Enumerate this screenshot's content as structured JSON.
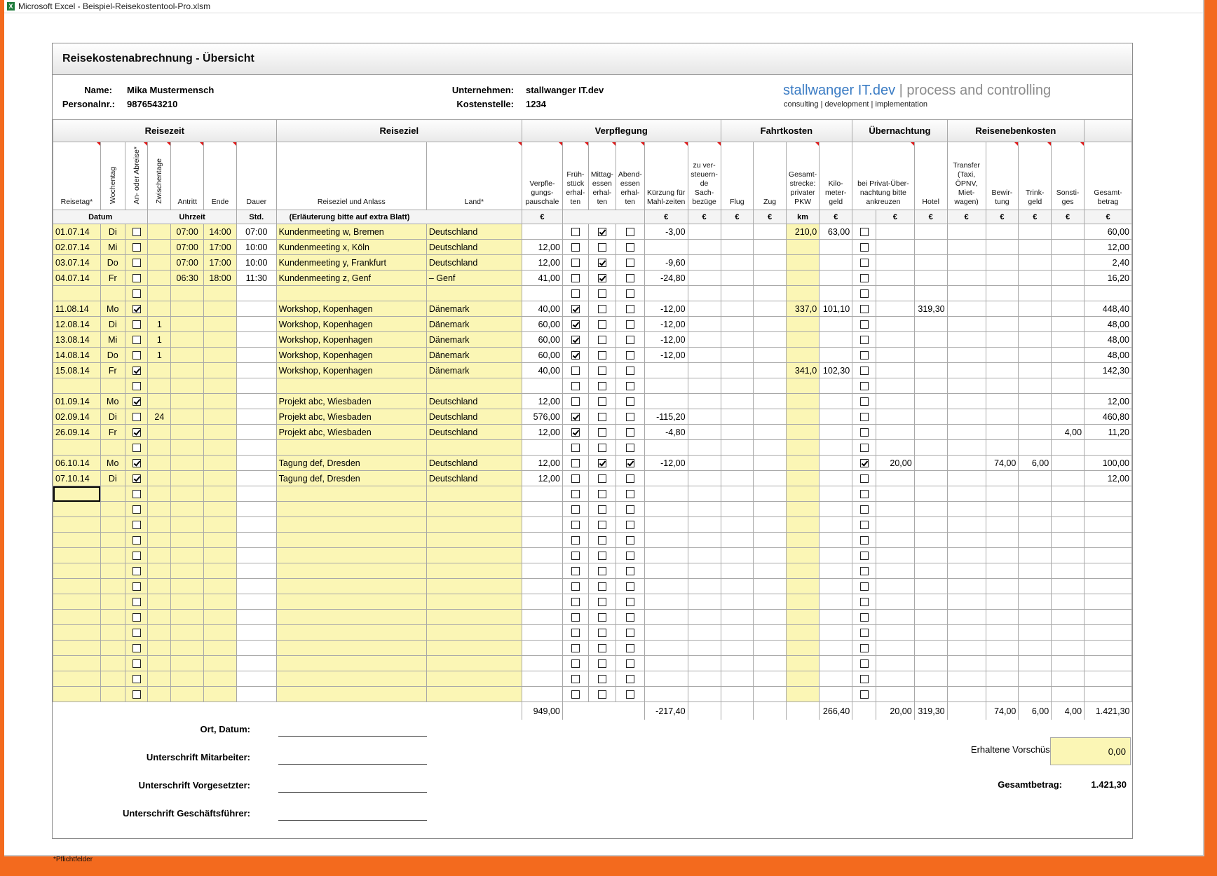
{
  "window_title": "Microsoft Excel - Beispiel-Reisekostentool-Pro.xlsm",
  "app_icon": "excel-icon",
  "sheet_title": "Reisekostenabrechnung - Übersicht",
  "employee": {
    "name_label": "Name:",
    "name": "Mika Mustermensch",
    "id_label": "Personalnr.:",
    "id": "9876543210"
  },
  "company": {
    "company_label": "Unternehmen:",
    "company": "stallwanger IT.dev",
    "cost_center_label": "Kostenstelle:",
    "cost_center": "1234"
  },
  "logo": {
    "brand": "stallwanger IT.dev",
    "separator": "|",
    "claim": "process and controlling",
    "tagline": "consulting | development | implementation"
  },
  "groups": [
    "Reisezeit",
    "Reiseziel",
    "Verpflegung",
    "Fahrtkosten",
    "Übernachtung",
    "Reisenebenkosten"
  ],
  "columns": {
    "reisetag": "Reisetag*",
    "wochentag": "Wochentag",
    "anab": "An- oder Abreise*",
    "zwischen": "Zwischentage",
    "antritt": "Antritt",
    "ende": "Ende",
    "dauer": "Dauer",
    "reiseziel": "Reiseziel und Anlass",
    "land": "Land*",
    "pauschale": "Verpfle-gungs-pauschale",
    "frueh": "Früh-stück erhal-ten",
    "mittag": "Mittag-essen erhal-ten",
    "abend": "Abend-essen erhal-ten",
    "kuerzung": "Kürzung für Mahl-zeiten",
    "sachbezuege": "zu ver-steuern-de Sach-bezüge",
    "flug": "Flug",
    "zug": "Zug",
    "strecke": "Gesamt-strecke: privater PKW",
    "kilometer": "Kilo-meter-geld",
    "privat": "bei Privat-Über-nachtung bitte ankreuzen",
    "hotel": "Hotel",
    "transfer": "Transfer (Taxi, ÖPNV, Miet-wagen)",
    "bewirtung": "Bewir-tung",
    "trinkgeld": "Trink-geld",
    "sonstiges": "Sonsti-ges",
    "gesamt": "Gesamt-betrag"
  },
  "units": {
    "datum": "Datum",
    "uhrzeit": "Uhrzeit",
    "std": "Std.",
    "erlaeuterung": "(Erläuterung bitte auf extra Blatt)",
    "euro": "€",
    "km": "km"
  },
  "rows": [
    {
      "date": "01.07.14",
      "wd": "Di",
      "ab": false,
      "zt": "",
      "start": "07:00",
      "end": "14:00",
      "dur": "07:00",
      "dest": "Kundenmeeting w, Bremen",
      "land": "Deutschland",
      "pausch": "",
      "fr": false,
      "mi": true,
      "abd": false,
      "kuerz": "-3,00",
      "km": "210,0",
      "kmg": "63,00",
      "pr": false,
      "hotel": "",
      "bew": "",
      "trk": "",
      "sonst": "",
      "total": "60,00"
    },
    {
      "date": "02.07.14",
      "wd": "Mi",
      "ab": false,
      "zt": "",
      "start": "07:00",
      "end": "17:00",
      "dur": "10:00",
      "dest": "Kundenmeeting x, Köln",
      "land": "Deutschland",
      "pausch": "12,00",
      "fr": false,
      "mi": false,
      "abd": false,
      "kuerz": "",
      "km": "",
      "kmg": "",
      "pr": false,
      "hotel": "",
      "bew": "",
      "trk": "",
      "sonst": "",
      "total": "12,00"
    },
    {
      "date": "03.07.14",
      "wd": "Do",
      "ab": false,
      "zt": "",
      "start": "07:00",
      "end": "17:00",
      "dur": "10:00",
      "dest": "Kundenmeeting y, Frankfurt",
      "land": "Deutschland",
      "pausch": "12,00",
      "fr": false,
      "mi": true,
      "abd": false,
      "kuerz": "-9,60",
      "km": "",
      "kmg": "",
      "pr": false,
      "hotel": "",
      "bew": "",
      "trk": "",
      "sonst": "",
      "total": "2,40"
    },
    {
      "date": "04.07.14",
      "wd": "Fr",
      "ab": false,
      "zt": "",
      "start": "06:30",
      "end": "18:00",
      "dur": "11:30",
      "dest": "Kundenmeeting z, Genf",
      "land": "– Genf",
      "pausch": "41,00",
      "fr": false,
      "mi": true,
      "abd": false,
      "kuerz": "-24,80",
      "km": "",
      "kmg": "",
      "pr": false,
      "hotel": "",
      "bew": "",
      "trk": "",
      "sonst": "",
      "total": "16,20"
    },
    {
      "date": "",
      "wd": "",
      "ab": false,
      "zt": "",
      "start": "",
      "end": "",
      "dur": "",
      "dest": "",
      "land": "",
      "pausch": "",
      "fr": false,
      "mi": false,
      "abd": false,
      "kuerz": "",
      "km": "",
      "kmg": "",
      "pr": false,
      "hotel": "",
      "bew": "",
      "trk": "",
      "sonst": "",
      "total": ""
    },
    {
      "date": "11.08.14",
      "wd": "Mo",
      "ab": true,
      "zt": "",
      "start": "",
      "end": "",
      "dur": "",
      "dest": "Workshop, Kopenhagen",
      "land": "Dänemark",
      "pausch": "40,00",
      "fr": true,
      "mi": false,
      "abd": false,
      "kuerz": "-12,00",
      "km": "337,0",
      "kmg": "101,10",
      "pr": false,
      "hotel": "319,30",
      "bew": "",
      "trk": "",
      "sonst": "",
      "total": "448,40"
    },
    {
      "date": "12.08.14",
      "wd": "Di",
      "ab": false,
      "zt": "1",
      "start": "",
      "end": "",
      "dur": "",
      "dest": "Workshop, Kopenhagen",
      "land": "Dänemark",
      "pausch": "60,00",
      "fr": true,
      "mi": false,
      "abd": false,
      "kuerz": "-12,00",
      "km": "",
      "kmg": "",
      "pr": false,
      "hotel": "",
      "bew": "",
      "trk": "",
      "sonst": "",
      "total": "48,00"
    },
    {
      "date": "13.08.14",
      "wd": "Mi",
      "ab": false,
      "zt": "1",
      "start": "",
      "end": "",
      "dur": "",
      "dest": "Workshop, Kopenhagen",
      "land": "Dänemark",
      "pausch": "60,00",
      "fr": true,
      "mi": false,
      "abd": false,
      "kuerz": "-12,00",
      "km": "",
      "kmg": "",
      "pr": false,
      "hotel": "",
      "bew": "",
      "trk": "",
      "sonst": "",
      "total": "48,00"
    },
    {
      "date": "14.08.14",
      "wd": "Do",
      "ab": false,
      "zt": "1",
      "start": "",
      "end": "",
      "dur": "",
      "dest": "Workshop, Kopenhagen",
      "land": "Dänemark",
      "pausch": "60,00",
      "fr": true,
      "mi": false,
      "abd": false,
      "kuerz": "-12,00",
      "km": "",
      "kmg": "",
      "pr": false,
      "hotel": "",
      "bew": "",
      "trk": "",
      "sonst": "",
      "total": "48,00"
    },
    {
      "date": "15.08.14",
      "wd": "Fr",
      "ab": true,
      "zt": "",
      "start": "",
      "end": "",
      "dur": "",
      "dest": "Workshop, Kopenhagen",
      "land": "Dänemark",
      "pausch": "40,00",
      "fr": false,
      "mi": false,
      "abd": false,
      "kuerz": "",
      "km": "341,0",
      "kmg": "102,30",
      "pr": false,
      "hotel": "",
      "bew": "",
      "trk": "",
      "sonst": "",
      "total": "142,30"
    },
    {
      "date": "",
      "wd": "",
      "ab": false,
      "zt": "",
      "start": "",
      "end": "",
      "dur": "",
      "dest": "",
      "land": "",
      "pausch": "",
      "fr": false,
      "mi": false,
      "abd": false,
      "kuerz": "",
      "km": "",
      "kmg": "",
      "pr": false,
      "hotel": "",
      "bew": "",
      "trk": "",
      "sonst": "",
      "total": ""
    },
    {
      "date": "01.09.14",
      "wd": "Mo",
      "ab": true,
      "zt": "",
      "start": "",
      "end": "",
      "dur": "",
      "dest": "Projekt abc, Wiesbaden",
      "land": "Deutschland",
      "pausch": "12,00",
      "fr": false,
      "mi": false,
      "abd": false,
      "kuerz": "",
      "km": "",
      "kmg": "",
      "pr": false,
      "hotel": "",
      "bew": "",
      "trk": "",
      "sonst": "",
      "total": "12,00"
    },
    {
      "date": "02.09.14",
      "wd": "Di",
      "ab": false,
      "zt": "24",
      "start": "",
      "end": "",
      "dur": "",
      "dest": "Projekt abc, Wiesbaden",
      "land": "Deutschland",
      "pausch": "576,00",
      "fr": true,
      "mi": false,
      "abd": false,
      "kuerz": "-115,20",
      "km": "",
      "kmg": "",
      "pr": false,
      "hotel": "",
      "bew": "",
      "trk": "",
      "sonst": "",
      "total": "460,80"
    },
    {
      "date": "26.09.14",
      "wd": "Fr",
      "ab": true,
      "zt": "",
      "start": "",
      "end": "",
      "dur": "",
      "dest": "Projekt abc, Wiesbaden",
      "land": "Deutschland",
      "pausch": "12,00",
      "fr": true,
      "mi": false,
      "abd": false,
      "kuerz": "-4,80",
      "km": "",
      "kmg": "",
      "pr": false,
      "hotel": "",
      "bew": "",
      "trk": "",
      "sonst": "4,00",
      "total": "11,20"
    },
    {
      "date": "",
      "wd": "",
      "ab": false,
      "zt": "",
      "start": "",
      "end": "",
      "dur": "",
      "dest": "",
      "land": "",
      "pausch": "",
      "fr": false,
      "mi": false,
      "abd": false,
      "kuerz": "",
      "km": "",
      "kmg": "",
      "pr": false,
      "hotel": "",
      "bew": "",
      "trk": "",
      "sonst": "",
      "total": ""
    },
    {
      "date": "06.10.14",
      "wd": "Mo",
      "ab": true,
      "zt": "",
      "start": "",
      "end": "",
      "dur": "",
      "dest": "Tagung def, Dresden",
      "land": "Deutschland",
      "pausch": "12,00",
      "fr": false,
      "mi": true,
      "abd": true,
      "kuerz": "-12,00",
      "km": "",
      "kmg": "",
      "pr": true,
      "privat_amt": "20,00",
      "hotel": "",
      "bew": "74,00",
      "trk": "6,00",
      "sonst": "",
      "total": "100,00"
    },
    {
      "date": "07.10.14",
      "wd": "Di",
      "ab": true,
      "zt": "",
      "start": "",
      "end": "",
      "dur": "",
      "dest": "Tagung def, Dresden",
      "land": "Deutschland",
      "pausch": "12,00",
      "fr": false,
      "mi": false,
      "abd": false,
      "kuerz": "",
      "km": "",
      "kmg": "",
      "pr": false,
      "hotel": "",
      "bew": "",
      "trk": "",
      "sonst": "",
      "total": "12,00"
    }
  ],
  "empty_rows": 14,
  "totals": {
    "pausch": "949,00",
    "kuerz": "-217,40",
    "kmg": "266,40",
    "privat": "20,00",
    "hotel": "319,30",
    "bew": "74,00",
    "trk": "6,00",
    "sonst": "4,00",
    "total": "1.421,30"
  },
  "signatures": {
    "ort_datum": "Ort, Datum:",
    "mitarbeiter": "Unterschrift Mitarbeiter:",
    "vorgesetzter": "Unterschrift Vorgesetzter:",
    "geschaeftsfuehrer": "Unterschrift Geschäftsführer:"
  },
  "advances": {
    "label": "Erhaltene Vorschüsse:",
    "value": "0,00"
  },
  "grand_total": {
    "label": "Gesamtbetrag:",
    "value": "1.421,30"
  },
  "footnote": "*Pflichtfelder",
  "colors": {
    "input_yellow": "#fbf6b5",
    "logo_blue": "#3b7cc4",
    "logo_gray": "#8c8c8c",
    "comment_red": "#e01818",
    "window_border": "#f36a1e"
  }
}
